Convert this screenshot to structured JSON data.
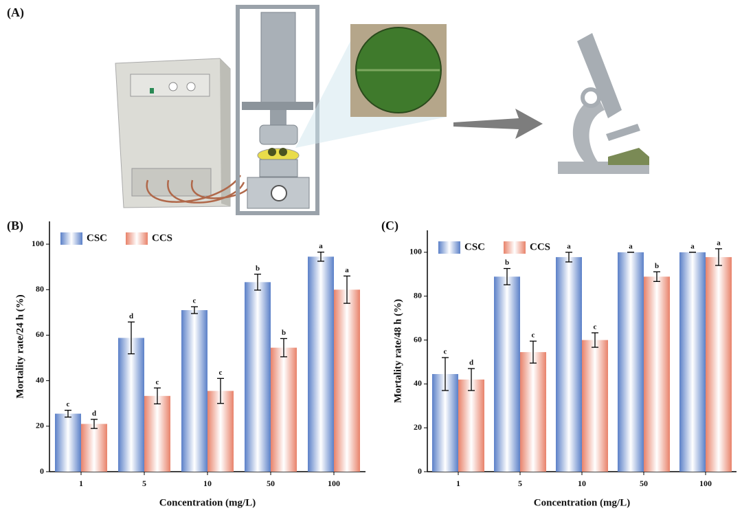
{
  "panel_a": {
    "label": "(A)"
  },
  "chart_data": [
    {
      "type": "bar",
      "panel": "(B)",
      "xlabel": "Concentration (mg/L)",
      "ylabel": "Mortality rate/24 h (%)",
      "categories": [
        "1",
        "5",
        "10",
        "50",
        "100"
      ],
      "series": [
        {
          "name": "CSC",
          "color": "#5b80c8",
          "values": [
            25.5,
            58.8,
            71,
            83.3,
            94.5
          ],
          "errors": [
            1.5,
            7,
            1.5,
            3.5,
            2
          ],
          "letters": [
            "c",
            "d",
            "c",
            "b",
            "a"
          ]
        },
        {
          "name": "CCS",
          "color": "#e8826a",
          "values": [
            21,
            33.3,
            35.5,
            54.5,
            80
          ],
          "errors": [
            2,
            3.5,
            5.5,
            4,
            6
          ],
          "letters": [
            "d",
            "c",
            "c",
            "b",
            "a"
          ]
        }
      ],
      "ylim": [
        0,
        110
      ],
      "yticks": [
        0,
        20,
        40,
        60,
        80,
        100
      ],
      "legend": "top-left"
    },
    {
      "type": "bar",
      "panel": "(C)",
      "xlabel": "Concentration (mg/L)",
      "ylabel": "Mortality rate/48 h (%)",
      "categories": [
        "1",
        "5",
        "10",
        "50",
        "100"
      ],
      "series": [
        {
          "name": "CSC",
          "color": "#5b80c8",
          "values": [
            44.5,
            88.9,
            97.8,
            100,
            100
          ],
          "errors": [
            7.5,
            3.7,
            2.2,
            0,
            0
          ],
          "letters": [
            "c",
            "b",
            "a",
            "a",
            "a"
          ]
        },
        {
          "name": "CCS",
          "color": "#e8826a",
          "values": [
            42,
            54.5,
            60,
            88.9,
            97.8
          ],
          "errors": [
            5,
            5,
            3.3,
            2.2,
            3.8
          ],
          "letters": [
            "d",
            "c",
            "c",
            "b",
            "a"
          ]
        }
      ],
      "ylim": [
        0,
        110
      ],
      "yticks": [
        0,
        20,
        40,
        60,
        80,
        100
      ],
      "legend": "top-left"
    }
  ]
}
